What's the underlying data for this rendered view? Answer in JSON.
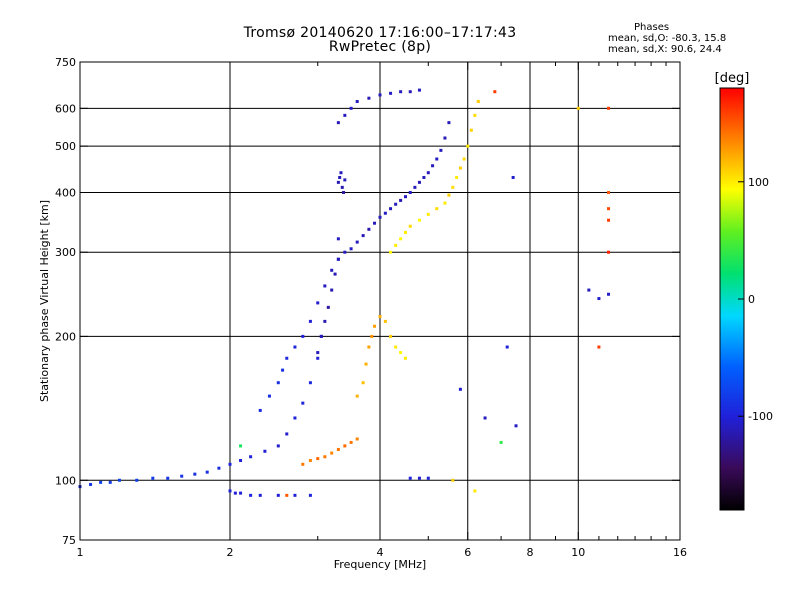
{
  "chart_data": {
    "type": "scatter",
    "title": "Tromsø 20140620 17:16:00–17:17:43",
    "subtitle": "RwPretec (8p)",
    "xlabel": "Frequency [MHz]",
    "ylabel": "Stationary phase Virtual Height [km]",
    "x_scale": "log",
    "y_scale": "log",
    "xlim": [
      1,
      16
    ],
    "ylim": [
      75,
      750
    ],
    "x_ticks": [
      1,
      2,
      4,
      6,
      8,
      10,
      16
    ],
    "x_tick_labels": [
      "1",
      "2",
      "4",
      "6",
      "8",
      "10",
      "16"
    ],
    "x_minor_ticks": [
      3,
      5,
      7,
      9,
      11,
      12,
      13,
      14,
      15
    ],
    "y_ticks": [
      75,
      100,
      200,
      300,
      400,
      500,
      600,
      750
    ],
    "y_tick_labels": [
      "75",
      "100",
      "200",
      "300",
      "400",
      "500",
      "600",
      "750"
    ],
    "grid": true,
    "phase_stats": {
      "heading": "Phases",
      "o_mode": "mean, sd,O: -80.3, 15.8",
      "x_mode": "mean, sd,X:  90.6, 24.4"
    },
    "colorbar": {
      "label": "[deg]",
      "range": [
        -180,
        180
      ],
      "ticks": [
        -100,
        0,
        100
      ],
      "tick_labels": [
        "-100",
        "0",
        "100"
      ],
      "colormap": "rainbow (black → purple → blue → cyan → green → yellow → orange → red)"
    },
    "series": [
      {
        "points": [
          [
            1.0,
            97,
            -95
          ],
          [
            1.05,
            98,
            -85
          ],
          [
            1.1,
            99,
            -80
          ],
          [
            1.15,
            99,
            -82
          ],
          [
            1.2,
            100,
            -78
          ],
          [
            1.3,
            100,
            -80
          ],
          [
            1.4,
            101,
            -82
          ],
          [
            1.5,
            101,
            -85
          ],
          [
            1.6,
            102,
            -88
          ],
          [
            1.7,
            103,
            -90
          ],
          [
            1.8,
            104,
            -92
          ],
          [
            1.9,
            106,
            -95
          ],
          [
            2.0,
            108,
            -98
          ],
          [
            2.1,
            110,
            -100
          ],
          [
            2.2,
            112,
            -100
          ],
          [
            2.35,
            115,
            -102
          ],
          [
            2.5,
            118,
            -105
          ],
          [
            2.6,
            125,
            -105
          ],
          [
            2.7,
            135,
            -100
          ],
          [
            2.8,
            145,
            -98
          ],
          [
            2.9,
            160,
            -95
          ],
          [
            3.0,
            180,
            -102
          ],
          [
            3.05,
            200,
            -108
          ]
        ]
      },
      {
        "points": [
          [
            2.3,
            140,
            -95
          ],
          [
            2.4,
            150,
            -92
          ],
          [
            2.5,
            160,
            -90
          ],
          [
            2.55,
            170,
            -92
          ],
          [
            2.6,
            180,
            -95
          ],
          [
            2.7,
            190,
            -98
          ],
          [
            2.8,
            200,
            -100
          ],
          [
            2.9,
            215,
            -102
          ],
          [
            3.0,
            235,
            -105
          ],
          [
            3.1,
            255,
            -108
          ],
          [
            3.2,
            275,
            -110
          ],
          [
            3.3,
            290,
            -112
          ],
          [
            3.4,
            300,
            -110
          ],
          [
            3.5,
            305,
            -108
          ],
          [
            3.6,
            315,
            -110
          ],
          [
            3.7,
            325,
            -112
          ],
          [
            3.8,
            335,
            -115
          ],
          [
            3.9,
            345,
            -112
          ],
          [
            4.0,
            355,
            -110
          ],
          [
            4.1,
            362,
            -108
          ],
          [
            4.2,
            370,
            -110
          ],
          [
            4.3,
            378,
            -110
          ],
          [
            4.4,
            385,
            -112
          ],
          [
            4.5,
            392,
            -110
          ],
          [
            4.6,
            400,
            -108
          ],
          [
            4.7,
            410,
            -110
          ],
          [
            4.8,
            420,
            -112
          ],
          [
            4.9,
            430,
            -110
          ],
          [
            5.0,
            440,
            -112
          ],
          [
            5.1,
            455,
            -110
          ],
          [
            5.2,
            470,
            -108
          ],
          [
            5.3,
            490,
            -110
          ],
          [
            5.4,
            520,
            -112
          ],
          [
            5.5,
            560,
            -110
          ]
        ]
      },
      {
        "points": [
          [
            3.0,
            185,
            -110
          ],
          [
            3.05,
            200,
            -112
          ],
          [
            3.1,
            215,
            -115
          ],
          [
            3.15,
            230,
            -118
          ],
          [
            3.2,
            250,
            -115
          ],
          [
            3.25,
            270,
            -112
          ],
          [
            3.3,
            290,
            -110
          ],
          [
            3.3,
            320,
            -108
          ]
        ]
      },
      {
        "points": [
          [
            3.3,
            420,
            -115
          ],
          [
            3.32,
            430,
            -112
          ],
          [
            3.34,
            440,
            -110
          ],
          [
            3.36,
            410,
            -115
          ],
          [
            3.38,
            400,
            -118
          ],
          [
            3.4,
            425,
            -112
          ]
        ]
      },
      {
        "points": [
          [
            3.3,
            560,
            -112
          ],
          [
            3.4,
            580,
            -110
          ],
          [
            3.5,
            600,
            -108
          ],
          [
            3.6,
            620,
            -110
          ],
          [
            3.8,
            630,
            -112
          ],
          [
            4.0,
            640,
            -110
          ],
          [
            4.2,
            645,
            -108
          ],
          [
            4.4,
            650,
            -110
          ],
          [
            4.6,
            650,
            -112
          ],
          [
            4.8,
            655,
            -110
          ]
        ]
      },
      {
        "points": [
          [
            4.2,
            300,
            95
          ],
          [
            4.3,
            310,
            100
          ],
          [
            4.4,
            320,
            95
          ],
          [
            4.5,
            330,
            100
          ],
          [
            4.6,
            340,
            105
          ],
          [
            4.8,
            350,
            95
          ],
          [
            5.0,
            360,
            100
          ],
          [
            5.2,
            370,
            105
          ],
          [
            5.4,
            380,
            100
          ],
          [
            5.5,
            395,
            110
          ],
          [
            5.6,
            410,
            105
          ],
          [
            5.7,
            430,
            100
          ],
          [
            5.8,
            450,
            110
          ],
          [
            5.9,
            470,
            105
          ],
          [
            6.0,
            500,
            100
          ],
          [
            6.1,
            540,
            110
          ],
          [
            6.2,
            580,
            105
          ],
          [
            6.3,
            620,
            110
          ]
        ]
      },
      {
        "points": [
          [
            3.6,
            150,
            120
          ],
          [
            3.7,
            160,
            115
          ],
          [
            3.75,
            175,
            120
          ],
          [
            3.8,
            190,
            125
          ],
          [
            3.85,
            200,
            130
          ],
          [
            3.9,
            210,
            125
          ],
          [
            4.0,
            220,
            120
          ],
          [
            4.1,
            215,
            115
          ],
          [
            4.2,
            200,
            110
          ],
          [
            4.3,
            190,
            100
          ],
          [
            4.4,
            185,
            95
          ]
        ]
      },
      {
        "points": [
          [
            2.8,
            108,
            140
          ],
          [
            2.9,
            110,
            135
          ],
          [
            3.0,
            111,
            145
          ],
          [
            3.1,
            112,
            140
          ],
          [
            3.2,
            114,
            135
          ],
          [
            3.3,
            116,
            140
          ],
          [
            3.4,
            118,
            145
          ],
          [
            3.5,
            120,
            140
          ],
          [
            3.6,
            122,
            135
          ]
        ]
      },
      {
        "points": [
          [
            2.0,
            95,
            -100
          ],
          [
            2.05,
            94,
            -102
          ],
          [
            2.1,
            94,
            -100
          ],
          [
            2.2,
            93,
            -98
          ],
          [
            2.3,
            93,
            -100
          ],
          [
            2.5,
            93,
            -102
          ],
          [
            2.7,
            93,
            -100
          ],
          [
            2.9,
            93,
            -98
          ],
          [
            4.6,
            101,
            -100
          ],
          [
            4.8,
            101,
            -102
          ],
          [
            5.0,
            101,
            -100
          ]
        ]
      },
      {
        "points": [
          [
            5.8,
            155,
            -105
          ],
          [
            6.5,
            135,
            -110
          ],
          [
            7.2,
            190,
            -100
          ],
          [
            7.4,
            430,
            -105
          ],
          [
            7.5,
            130,
            -108
          ],
          [
            10.5,
            250,
            -110
          ],
          [
            11.0,
            240,
            -105
          ],
          [
            11.5,
            245,
            -108
          ],
          [
            11.0,
            190,
            160
          ],
          [
            11.5,
            400,
            150
          ],
          [
            11.5,
            370,
            155
          ],
          [
            11.5,
            350,
            160
          ],
          [
            11.5,
            300,
            170
          ],
          [
            11.5,
            600,
            160
          ],
          [
            10.0,
            600,
            110
          ],
          [
            6.8,
            650,
            160
          ],
          [
            5.6,
            100,
            110
          ],
          [
            6.2,
            95,
            100
          ],
          [
            4.5,
            180,
            100
          ],
          [
            7.0,
            120,
            40
          ],
          [
            2.1,
            118,
            30
          ],
          [
            2.6,
            93,
            150
          ]
        ]
      }
    ]
  }
}
